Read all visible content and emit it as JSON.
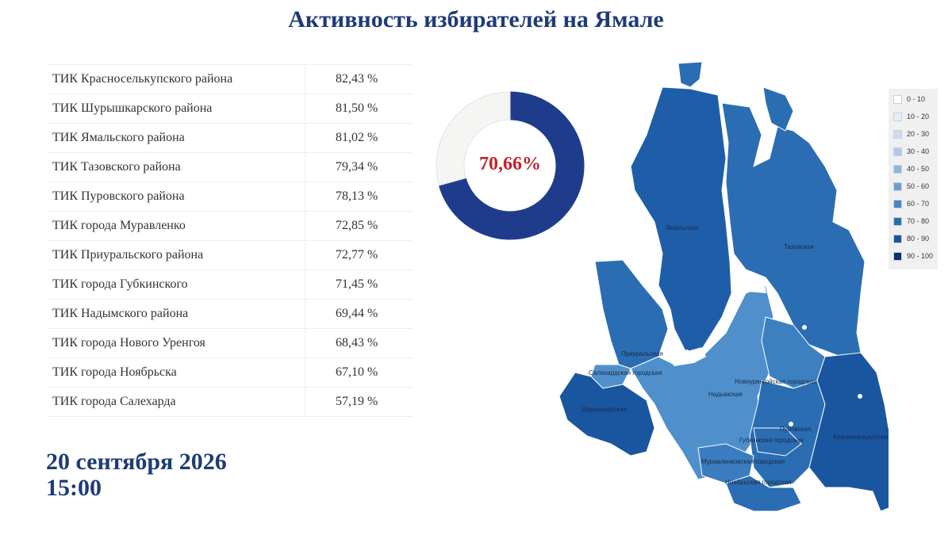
{
  "title": "Активность избирателей на Ямале",
  "chart_data": [
    {
      "type": "table",
      "rows": [
        {
          "name": "ТИК Красноселькупского района",
          "value": "82,43 %"
        },
        {
          "name": "ТИК Шурышкарского района",
          "value": "81,50 %"
        },
        {
          "name": "ТИК Ямальского района",
          "value": "81,02 %"
        },
        {
          "name": "ТИК Тазовского района",
          "value": "79,34 %"
        },
        {
          "name": "ТИК Пуровского района",
          "value": "78,13 %"
        },
        {
          "name": "ТИК города Муравленко",
          "value": "72,85 %"
        },
        {
          "name": "ТИК Приуральского района",
          "value": "72,77 %"
        },
        {
          "name": "ТИК города Губкинского",
          "value": "71,45 %"
        },
        {
          "name": "ТИК Надымского района",
          "value": "69,44 %"
        },
        {
          "name": "ТИК города Нового Уренгоя",
          "value": "68,43 %"
        },
        {
          "name": "ТИК города Ноябрьска",
          "value": "67,10 %"
        },
        {
          "name": "ТИК города Салехарда",
          "value": "57,19 %"
        }
      ]
    },
    {
      "type": "pie",
      "label": "70,66%",
      "values": [
        70.66,
        29.34
      ],
      "colors": [
        "#1f3c8c",
        "#f5f5f3"
      ]
    },
    {
      "type": "heatmap",
      "regions": [
        {
          "name": "Ямальская",
          "value": 81.02,
          "color": "#1e5ea8"
        },
        {
          "name": "Тазовская",
          "value": 79.34,
          "color": "#2a6db3"
        },
        {
          "name": "Приуральская",
          "value": 72.77,
          "color": "#2a6db3"
        },
        {
          "name": "Салехардская городская",
          "value": 57.19,
          "color": "#4f90cc"
        },
        {
          "name": "Шурышкарская",
          "value": 81.5,
          "color": "#1a55a0"
        },
        {
          "name": "Надымская",
          "value": 69.44,
          "color": "#4f90cc"
        },
        {
          "name": "Новоуренгойская городская",
          "value": 68.43,
          "color": "#3c80c2"
        },
        {
          "name": "Пуровская",
          "value": 78.13,
          "color": "#2a6db3"
        },
        {
          "name": "Губкинская городская",
          "value": 71.45,
          "color": "#2a6db3"
        },
        {
          "name": "Красноселькупская",
          "value": 82.43,
          "color": "#1a55a0"
        },
        {
          "name": "Муравленковская городская",
          "value": 72.85,
          "color": "#3a7cbf"
        },
        {
          "name": "Ноябрьская городская",
          "value": 67.1,
          "color": "#2a6db3"
        }
      ],
      "legend": [
        {
          "label": "0 - 10",
          "color": "#ffffff"
        },
        {
          "label": "10 - 20",
          "color": "#e6edf6"
        },
        {
          "label": "20 - 30",
          "color": "#cddcee"
        },
        {
          "label": "30 - 40",
          "color": "#b1cae5"
        },
        {
          "label": "40 - 50",
          "color": "#92b5db"
        },
        {
          "label": "50 - 60",
          "color": "#6f9dd0"
        },
        {
          "label": "60 - 70",
          "color": "#4a85c3"
        },
        {
          "label": "70 - 80",
          "color": "#2a6db3"
        },
        {
          "label": "80 - 90",
          "color": "#1a55a0"
        },
        {
          "label": "90 - 100",
          "color": "#0f2f6e"
        }
      ]
    }
  ],
  "date": "20 сентября 2026",
  "time": "15:00"
}
